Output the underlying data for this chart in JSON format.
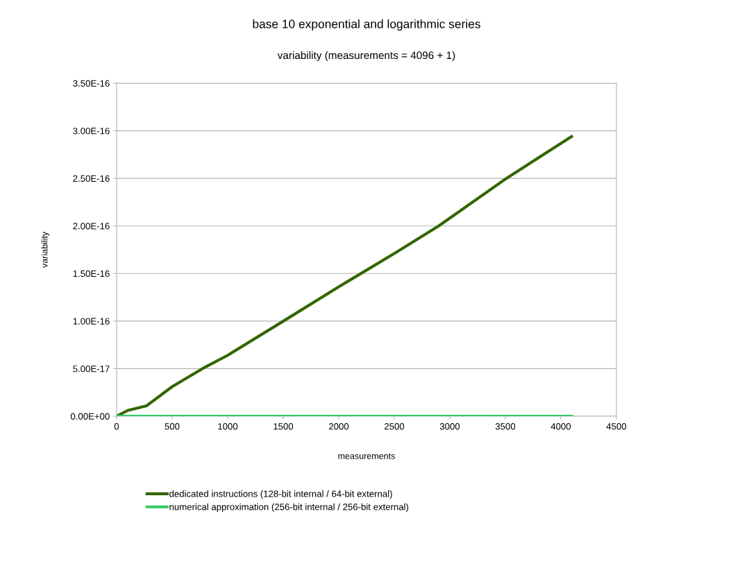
{
  "chart_data": {
    "type": "line",
    "title": "base 10 exponential and logarithmic series",
    "subtitle": "variability (measurements = 4096 + 1)",
    "xlabel": "measurements",
    "ylabel": "variability",
    "series": [
      {
        "name": "dedicated instructions (128-bit internal / 64-bit external)",
        "color": "#336600",
        "x": [
          0,
          100,
          271,
          500,
          773,
          1000,
          1502,
          2000,
          2500,
          2900,
          3510,
          4096
        ],
        "values": [
          0,
          6e-18,
          1.1e-17,
          3.1e-17,
          5e-17,
          6.4e-17,
          1e-16,
          1.36e-16,
          1.71e-16,
          2e-16,
          2.5e-16,
          2.94e-16
        ]
      },
      {
        "name": "numerical approximation (256-bit internal / 256-bit external)",
        "color": "#33cc66",
        "x": [
          0,
          4096
        ],
        "values": [
          0,
          0
        ]
      }
    ],
    "xlim": [
      0,
      4500
    ],
    "xticks": [
      0,
      500,
      1000,
      1500,
      2000,
      2500,
      3000,
      3500,
      4000,
      4500
    ],
    "ylim": [
      0,
      3.5e-16
    ],
    "yticks": [
      {
        "value": 0,
        "label": "0.00E+00"
      },
      {
        "value": 5e-17,
        "label": "5.00E-17"
      },
      {
        "value": 1e-16,
        "label": "1.00E-16"
      },
      {
        "value": 1.5e-16,
        "label": "1.50E-16"
      },
      {
        "value": 2e-16,
        "label": "2.00E-16"
      },
      {
        "value": 2.5e-16,
        "label": "2.50E-16"
      },
      {
        "value": 3e-16,
        "label": "3.00E-16"
      },
      {
        "value": 3.5e-16,
        "label": "3.50E-16"
      }
    ],
    "grid": "y",
    "legend": "bottom",
    "marker": "none",
    "line_style": "solid"
  }
}
